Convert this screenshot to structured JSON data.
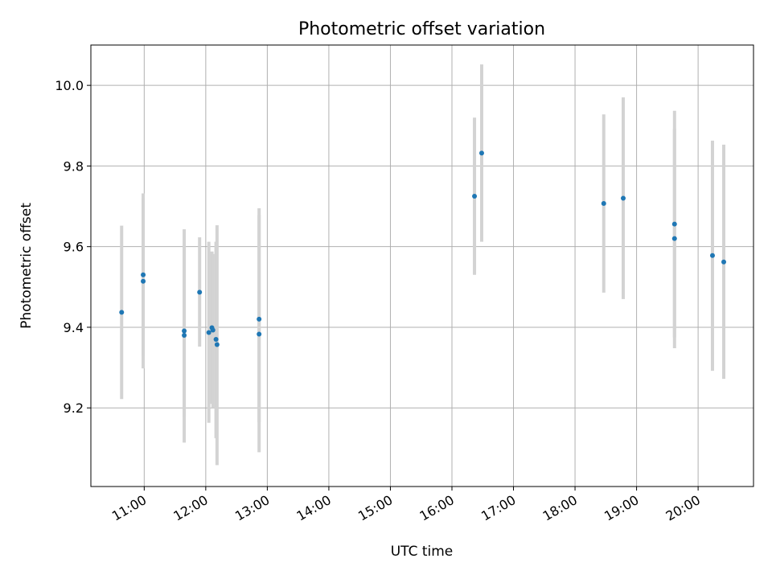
{
  "chart_data": {
    "type": "scatter",
    "title": "Photometric offset variation",
    "xlabel": "UTC time",
    "ylabel": "Photometric offset",
    "xlim": [
      "10:08",
      "20:54"
    ],
    "ylim": [
      9.005,
      10.1
    ],
    "grid": true,
    "x_ticks": [
      "11:00",
      "12:00",
      "13:00",
      "14:00",
      "15:00",
      "16:00",
      "17:00",
      "18:00",
      "19:00",
      "20:00"
    ],
    "y_ticks": [
      9.2,
      9.4,
      9.6,
      9.8,
      10.0
    ],
    "colors": {
      "point": "#1f77b4",
      "error_bar": "#d3d3d3",
      "grid": "#b0b0b0"
    },
    "points": [
      {
        "x": "10:38",
        "y": 9.437,
        "y_low": 9.222,
        "y_high": 9.652
      },
      {
        "x": "10:59",
        "y": 9.53,
        "y_low": 9.33,
        "y_high": 9.732
      },
      {
        "x": "10:59",
        "y": 9.514,
        "y_low": 9.298,
        "y_high": 9.72
      },
      {
        "x": "11:39",
        "y": 9.391,
        "y_low": 9.18,
        "y_high": 9.6
      },
      {
        "x": "11:39",
        "y": 9.38,
        "y_low": 9.114,
        "y_high": 9.643
      },
      {
        "x": "11:54",
        "y": 9.487,
        "y_low": 9.352,
        "y_high": 9.623
      },
      {
        "x": "12:03",
        "y": 9.387,
        "y_low": 9.163,
        "y_high": 9.612
      },
      {
        "x": "12:06",
        "y": 9.399,
        "y_low": 9.21,
        "y_high": 9.588
      },
      {
        "x": "12:07",
        "y": 9.393,
        "y_low": 9.2,
        "y_high": 9.582
      },
      {
        "x": "12:10",
        "y": 9.37,
        "y_low": 9.125,
        "y_high": 9.612
      },
      {
        "x": "12:11",
        "y": 9.357,
        "y_low": 9.058,
        "y_high": 9.653
      },
      {
        "x": "12:52",
        "y": 9.42,
        "y_low": 9.165,
        "y_high": 9.678
      },
      {
        "x": "12:52",
        "y": 9.383,
        "y_low": 9.09,
        "y_high": 9.695
      },
      {
        "x": "16:22",
        "y": 9.725,
        "y_low": 9.53,
        "y_high": 9.92
      },
      {
        "x": "16:29",
        "y": 9.832,
        "y_low": 9.612,
        "y_high": 10.052
      },
      {
        "x": "18:28",
        "y": 9.707,
        "y_low": 9.486,
        "y_high": 9.928
      },
      {
        "x": "18:47",
        "y": 9.72,
        "y_low": 9.47,
        "y_high": 9.97
      },
      {
        "x": "19:37",
        "y": 9.656,
        "y_low": 9.375,
        "y_high": 9.937
      },
      {
        "x": "19:37",
        "y": 9.62,
        "y_low": 9.348,
        "y_high": 9.892
      },
      {
        "x": "20:14",
        "y": 9.578,
        "y_low": 9.292,
        "y_high": 9.863
      },
      {
        "x": "20:25",
        "y": 9.562,
        "y_low": 9.272,
        "y_high": 9.853
      }
    ]
  }
}
